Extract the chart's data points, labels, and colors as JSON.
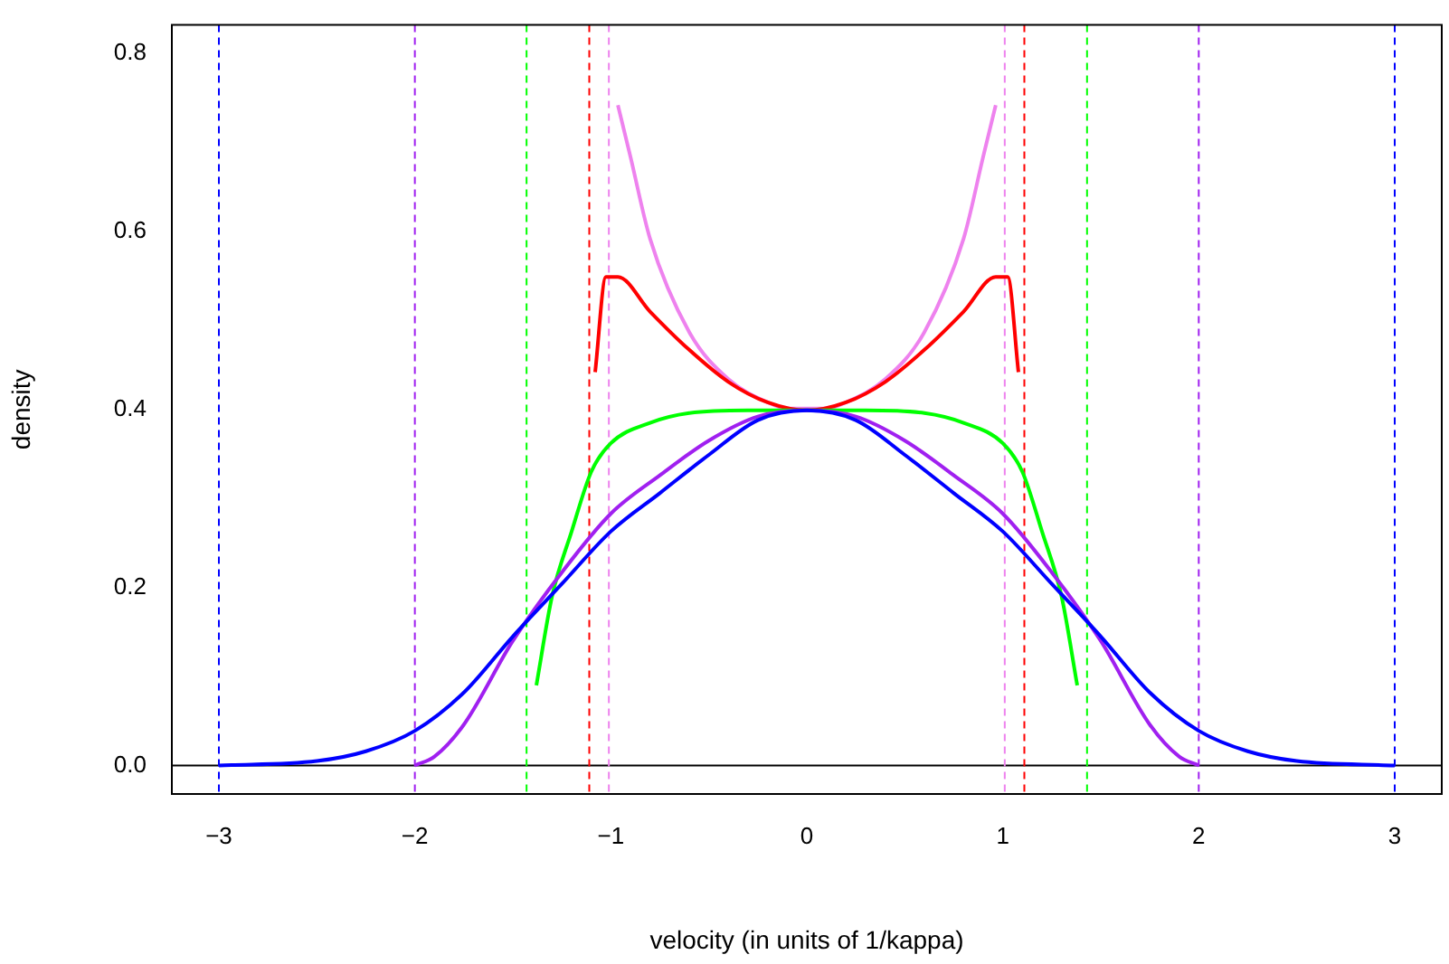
{
  "chart_data": {
    "type": "line",
    "xlabel": "velocity (in units of 1/kappa)",
    "ylabel": "density",
    "xlim": [
      -3.24,
      3.24
    ],
    "ylim": [
      -0.032,
      0.832
    ],
    "xticks": [
      {
        "value": -3,
        "label": "−3"
      },
      {
        "value": -2,
        "label": "−2"
      },
      {
        "value": -1,
        "label": "−1"
      },
      0,
      1,
      2,
      3
    ],
    "yticks": [
      {
        "value": 0,
        "label": "0.0"
      },
      0.2,
      0.4,
      0.6,
      0.8
    ],
    "grid": false,
    "legend": false,
    "series": [
      {
        "color": "#0000ff",
        "x": [
          -3,
          -2.5,
          -2.25,
          -2,
          -1.75,
          -1.5,
          -1.25,
          -1,
          -0.75,
          -0.5,
          -0.25,
          0,
          0.25,
          0.5,
          0.75,
          1,
          1.25,
          1.5,
          1.75,
          2,
          2.25,
          2.5,
          3
        ],
        "values": [
          0,
          0.005,
          0.016,
          0.039,
          0.082,
          0.145,
          0.204,
          0.263,
          0.306,
          0.349,
          0.388,
          0.399,
          0.388,
          0.349,
          0.306,
          0.263,
          0.204,
          0.145,
          0.082,
          0.039,
          0.016,
          0.005,
          0
        ]
      },
      {
        "color": "#a020f0",
        "x": [
          -2,
          -1.9,
          -1.75,
          -1.5,
          -1.25,
          -1,
          -0.75,
          -0.5,
          -0.25,
          0,
          0.25,
          0.5,
          0.75,
          1,
          1.25,
          1.5,
          1.75,
          1.9,
          2
        ],
        "values": [
          0,
          0.01,
          0.046,
          0.14,
          0.217,
          0.283,
          0.326,
          0.365,
          0.392,
          0.399,
          0.392,
          0.365,
          0.326,
          0.283,
          0.217,
          0.14,
          0.046,
          0.01,
          0
        ]
      },
      {
        "color": "#00ff00",
        "x": [
          -1.38,
          -1.3,
          -1.2,
          -1.1,
          -1,
          -0.8,
          -0.6,
          -0.3,
          0.3,
          0.6,
          0.8,
          1,
          1.1,
          1.2,
          1.3,
          1.38
        ],
        "values": [
          0.09,
          0.19,
          0.263,
          0.33,
          0.362,
          0.385,
          0.396,
          0.399,
          0.399,
          0.396,
          0.385,
          0.362,
          0.33,
          0.263,
          0.19,
          0.09
        ]
      },
      {
        "color": "#ff0000",
        "x": [
          -1.08,
          -1.025,
          -0.964,
          -0.8,
          -0.6,
          -0.4,
          -0.2,
          0,
          0.2,
          0.4,
          0.6,
          0.8,
          0.964,
          1.025,
          1.08
        ],
        "values": [
          0.442,
          0.549,
          0.549,
          0.51,
          0.467,
          0.431,
          0.408,
          0.399,
          0.408,
          0.431,
          0.467,
          0.51,
          0.549,
          0.549,
          0.442
        ]
      },
      {
        "color": "#ee82ee",
        "x": [
          -0.964,
          -0.9,
          -0.8,
          -0.6,
          -0.4,
          -0.2,
          -0.1,
          0.1,
          0.2,
          0.4,
          0.6,
          0.8,
          0.9,
          0.964
        ],
        "values": [
          0.742,
          0.684,
          0.592,
          0.487,
          0.434,
          0.408,
          0.401,
          0.401,
          0.408,
          0.434,
          0.487,
          0.592,
          0.684,
          0.742
        ]
      }
    ],
    "ref_lines": [
      {
        "axis": "y",
        "value": 0,
        "color": "#000000",
        "line_style": "solid"
      },
      {
        "axis": "x",
        "value": -3,
        "color": "#0000ff",
        "line_style": "dashed"
      },
      {
        "axis": "x",
        "value": 3,
        "color": "#0000ff",
        "line_style": "dashed"
      },
      {
        "axis": "x",
        "value": -2,
        "color": "#a020f0",
        "line_style": "dashed"
      },
      {
        "axis": "x",
        "value": 2,
        "color": "#a020f0",
        "line_style": "dashed"
      },
      {
        "axis": "x",
        "value": -1.43,
        "color": "#00ff00",
        "line_style": "dashed"
      },
      {
        "axis": "x",
        "value": 1.43,
        "color": "#00ff00",
        "line_style": "dashed"
      },
      {
        "axis": "x",
        "value": -1.11,
        "color": "#ff0000",
        "line_style": "dashed"
      },
      {
        "axis": "x",
        "value": 1.11,
        "color": "#ff0000",
        "line_style": "dashed"
      },
      {
        "axis": "x",
        "value": -1.01,
        "color": "#ee82ee",
        "line_style": "dashed"
      },
      {
        "axis": "x",
        "value": 1.01,
        "color": "#ee82ee",
        "line_style": "dashed"
      }
    ]
  }
}
